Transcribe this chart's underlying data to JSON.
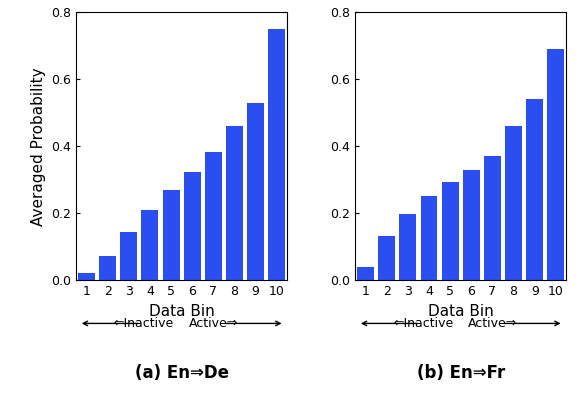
{
  "subplot_a": {
    "values": [
      0.022,
      0.072,
      0.143,
      0.21,
      0.27,
      0.322,
      0.383,
      0.46,
      0.53,
      0.75
    ],
    "title": "(a) En⇒De",
    "ylabel": "Averaged Probability"
  },
  "subplot_b": {
    "values": [
      0.04,
      0.132,
      0.198,
      0.25,
      0.292,
      0.33,
      0.372,
      0.46,
      0.54,
      0.69
    ],
    "title": "(b) En⇒Fr",
    "ylabel": ""
  },
  "xlabel": "Data Bin",
  "bar_color": "#2b4ef0",
  "ylim": [
    0,
    0.8
  ],
  "yticks": [
    0.0,
    0.2,
    0.4,
    0.6,
    0.8
  ],
  "bins": [
    1,
    2,
    3,
    4,
    5,
    6,
    7,
    8,
    9,
    10
  ],
  "inactive_label": "⇐Inactive",
  "active_label": "Active⇒"
}
